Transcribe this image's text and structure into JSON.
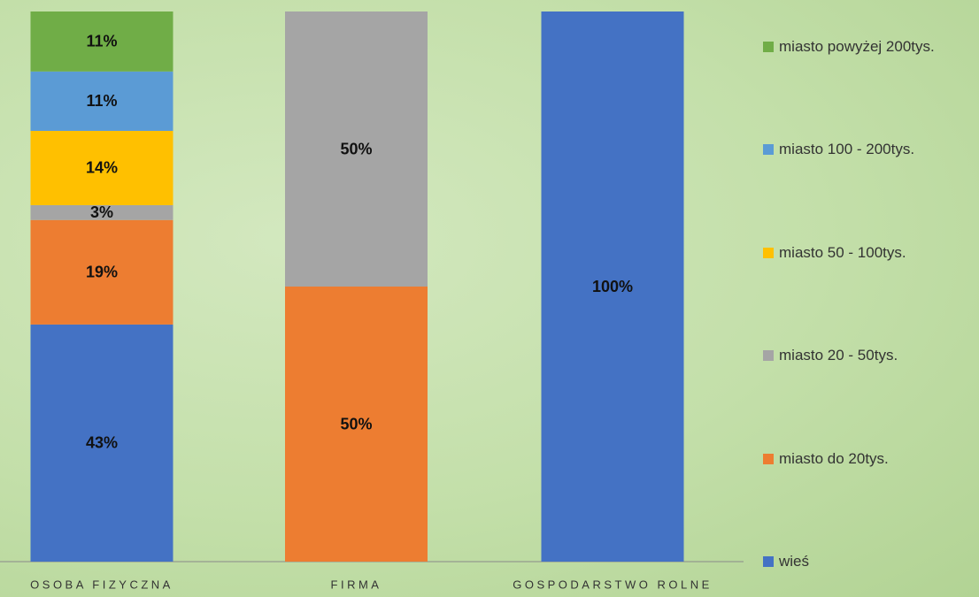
{
  "chart_data": {
    "type": "stacked_bar",
    "categories": [
      "OSOBA FIZYCZNA",
      "FIRMA",
      "GOSPODARSTWO ROLNE"
    ],
    "ylim": [
      0,
      100
    ],
    "series": [
      {
        "name": "wieś",
        "color": "#4472c4",
        "values": [
          43.1,
          null,
          100
        ],
        "value_labels": [
          "43%",
          null,
          "100%"
        ]
      },
      {
        "name": "miasto do 20tys.",
        "color": "#ed7d31",
        "values": [
          19,
          50,
          null
        ],
        "value_labels": [
          "19%",
          "50%",
          null
        ]
      },
      {
        "name": "miasto 20 - 50tys.",
        "color": "#a5a5a5",
        "values": [
          2.7,
          50,
          null
        ],
        "value_labels": [
          "3%",
          "50%",
          null
        ]
      },
      {
        "name": "miasto 50 - 100tys.",
        "color": "#ffc000",
        "values": [
          13.5,
          null,
          null
        ],
        "value_labels": [
          "14%",
          null,
          null
        ]
      },
      {
        "name": "miasto 100 - 200tys.",
        "color": "#5b9bd5",
        "values": [
          10.8,
          null,
          null
        ],
        "value_labels": [
          "11%",
          null,
          null
        ]
      },
      {
        "name": "miasto powyżej 200tys.",
        "color": "#70ad47",
        "values": [
          10.9,
          null,
          null
        ],
        "value_labels": [
          "11%",
          null,
          null
        ]
      }
    ]
  }
}
